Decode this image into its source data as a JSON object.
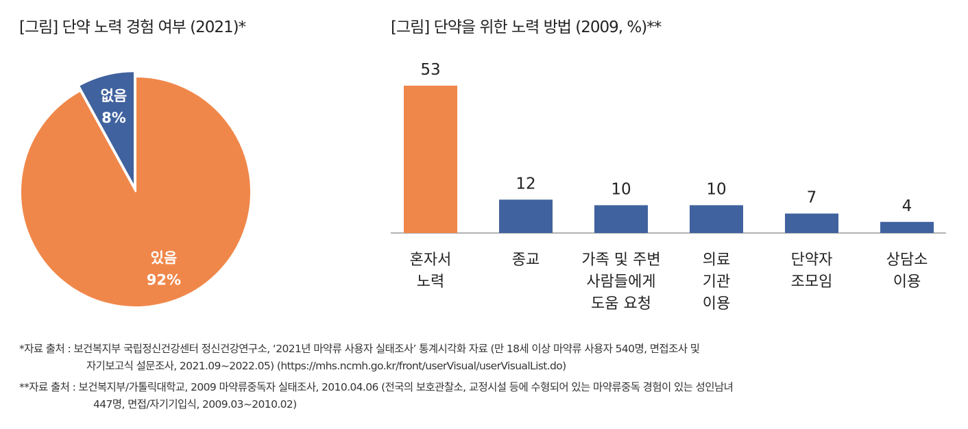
{
  "titles": {
    "left": "[그림] 단약 노력 경험 여부 (2021)*",
    "right": "[그림] 단약을 위한 노력 방법 (2009, %)**"
  },
  "chart_data": [
    {
      "type": "pie",
      "title": "[그림] 단약 노력 경험 여부 (2021)*",
      "slices": [
        {
          "label": "있음",
          "value": 92,
          "display": "92%",
          "color": "#F0874A"
        },
        {
          "label": "없음",
          "value": 8,
          "display": "8%",
          "color": "#40629E"
        }
      ]
    },
    {
      "type": "bar",
      "title": "[그림] 단약을 위한 노력 방법 (2009, %)**",
      "categories": [
        [
          "혼자서",
          "노력"
        ],
        [
          "종교"
        ],
        [
          "가족 및 주변",
          "사람들에게",
          "도움 요청"
        ],
        [
          "의료",
          "기관",
          "이용"
        ],
        [
          "단약자",
          "조모임"
        ],
        [
          "상담소",
          "이용"
        ]
      ],
      "values": [
        53,
        12,
        10,
        10,
        7,
        4
      ],
      "colors": [
        "#F0874A",
        "#40629E",
        "#40629E",
        "#40629E",
        "#40629E",
        "#40629E"
      ],
      "ylim": [
        0,
        53
      ]
    }
  ],
  "footnotes": [
    "*자료 출처 : 보건복지부 국립정신건강센터 정신건강연구소, ‘2021년 마약류 사용자 실태조사’ 통계시각화 자료 (만 18세 이상 마약류 사용자 540명, 면접조사 및",
    "자기보고식 설문조사, 2021.09~2022.05) (https://mhs.ncmh.go.kr/front/userVisual/userVisualList.do)",
    "**자료 출처 : 보건복지부/가톨릭대학교, 2009 마약류중독자 실태조사, 2010.04.06 (전국의 보호관찰소, 교정시설 등에 수형되어 있는 마약류중독 경험이 있는 성인남녀",
    "447명, 면접/자기기입식, 2009.03~2010.02)"
  ]
}
